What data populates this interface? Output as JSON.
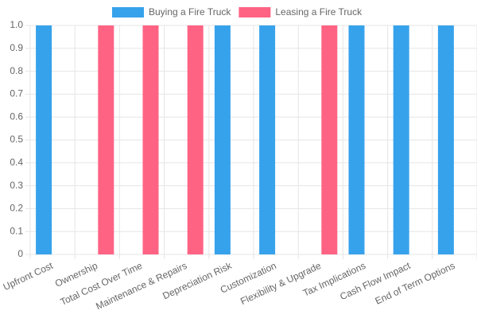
{
  "chart_data": {
    "type": "bar",
    "categories": [
      "Upfront Cost",
      "Ownership",
      "Total Cost Over Time",
      "Maintenance & Repairs",
      "Depreciation Risk",
      "Customization",
      "Flexibility & Upgrade",
      "Tax Implications",
      "Cash Flow Impact",
      "End of Term Options"
    ],
    "series": [
      {
        "name": "Buying a Fire Truck",
        "color": "#36a2eb",
        "values": [
          1,
          0,
          0,
          0,
          1,
          1,
          0,
          1,
          1,
          1
        ]
      },
      {
        "name": "Leasing a Fire Truck",
        "color": "#ff6384",
        "values": [
          0,
          1,
          1,
          1,
          0,
          0,
          1,
          0,
          0,
          0
        ]
      }
    ],
    "ylim": [
      0,
      1
    ],
    "yticks": [
      0,
      0.1,
      0.2,
      0.3,
      0.4,
      0.5,
      0.6,
      0.7,
      0.8,
      0.9,
      {
        "value": 1,
        "label": "1.0"
      }
    ],
    "grid": true,
    "legend": "top"
  }
}
